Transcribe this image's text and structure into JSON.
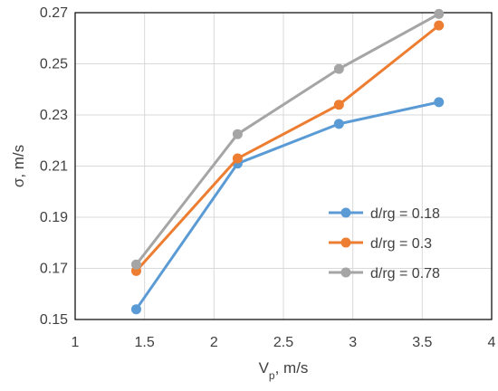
{
  "chart_data": {
    "type": "line",
    "title": "",
    "xlabel": {
      "main": "V",
      "sub": "p",
      "suffix": ", m/s"
    },
    "ylabel": "σ, m/s",
    "xlim": [
      1,
      4
    ],
    "ylim": [
      0.15,
      0.27
    ],
    "xticks": [
      "1",
      "1.5",
      "2",
      "2.5",
      "3",
      "3.5",
      "4"
    ],
    "yticks": [
      "0.15",
      "0.17",
      "0.19",
      "0.21",
      "0.23",
      "0.25",
      "0.27"
    ],
    "xtick_values": [
      1,
      1.5,
      2,
      2.5,
      3,
      3.5,
      4
    ],
    "ytick_values": [
      0.15,
      0.17,
      0.19,
      0.21,
      0.23,
      0.25,
      0.27
    ],
    "grid": true,
    "legend_position": "bottom-right",
    "series": [
      {
        "name": "d/rg = 0.18",
        "color": "#5B9BD5",
        "x": [
          1.44,
          2.17,
          2.9,
          3.62
        ],
        "y": [
          0.154,
          0.211,
          0.2265,
          0.235
        ]
      },
      {
        "name": "d/rg = 0.3",
        "color": "#ED7D31",
        "x": [
          1.44,
          2.17,
          2.9,
          3.62
        ],
        "y": [
          0.169,
          0.213,
          0.234,
          0.265
        ]
      },
      {
        "name": "d/rg = 0.78",
        "color": "#A5A5A5",
        "x": [
          1.44,
          2.17,
          2.9,
          3.62
        ],
        "y": [
          0.1715,
          0.2225,
          0.248,
          0.2695
        ]
      }
    ]
  }
}
